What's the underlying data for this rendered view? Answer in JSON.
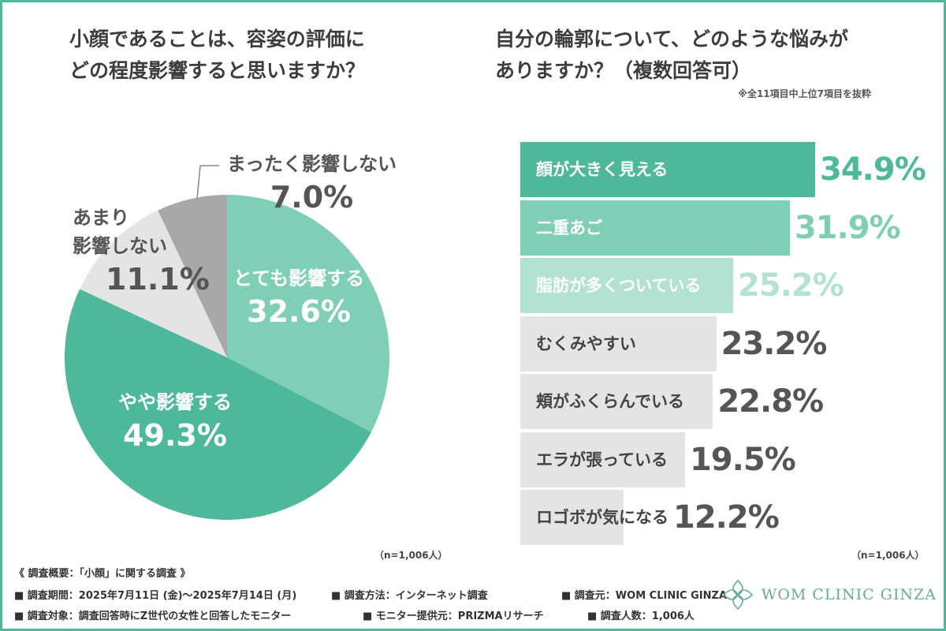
{
  "left_panel": {
    "title_line1": "小顔であることは、容姿の評価に",
    "title_line2": "どの程度影響すると思いますか？",
    "sample_size": "（n=1,006人）"
  },
  "right_panel": {
    "title_line1": "自分の輪郭について、どのような悩みが",
    "title_line2": "ありますか？（複数回答可）",
    "note": "※全11項目中上位7項目を抜粋",
    "sample_size": "（n=1,006人）"
  },
  "chart_data": [
    {
      "type": "pie",
      "title": "小顔であることは、容姿の評価にどの程度影響すると思いますか？",
      "start": "12 o'clock, clockwise",
      "slices": [
        {
          "label": "とても影響する",
          "value": 32.6,
          "value_label": "32.6%",
          "color": "#7fcfb6",
          "text_color": "#ffffff"
        },
        {
          "label": "やや影響する",
          "value": 49.3,
          "value_label": "49.3%",
          "color": "#4db89a",
          "text_color": "#ffffff"
        },
        {
          "label_line1": "あまり",
          "label_line2": "影響しない",
          "label": "あまり影響しない",
          "value": 11.1,
          "value_label": "11.1%",
          "color": "#e4e4e4",
          "text_color": "#555555"
        },
        {
          "label": "まったく影響しない",
          "value": 7.0,
          "value_label": "7.0%",
          "color": "#a8a8a8",
          "text_color": "#555555"
        }
      ]
    },
    {
      "type": "bar",
      "orientation": "horizontal",
      "title": "自分の輪郭について、どのような悩みがありますか？（複数回答可）",
      "categories": [
        "顔が大きく見える",
        "二重あご",
        "脂肪が多くついている",
        "むくみやすい",
        "頬がふくらんでいる",
        "エラが張っている",
        "ロゴボが気になる"
      ],
      "values": [
        34.9,
        31.9,
        25.2,
        23.2,
        22.8,
        19.5,
        12.2
      ],
      "value_labels": [
        "34.9%",
        "31.9%",
        "25.2%",
        "23.2%",
        "22.8%",
        "19.5%",
        "12.2%"
      ],
      "bar_colors": [
        "#4db89a",
        "#7fcfb6",
        "#b3e2d3",
        "#e4e4e4",
        "#e4e4e4",
        "#e4e4e4",
        "#e4e4e4"
      ],
      "label_colors": [
        "#ffffff",
        "#ffffff",
        "#ffffff",
        "#444444",
        "#444444",
        "#444444",
        "#444444"
      ],
      "value_colors": [
        "#4db89a",
        "#7fcfb6",
        "#b3e2d3",
        "#555555",
        "#555555",
        "#555555",
        "#555555"
      ],
      "xlim": [
        0,
        40
      ]
    }
  ],
  "footer": {
    "heading": "《 調査概要：「小顔」に関する調査 》",
    "period": "■ 調査期間：2025年7月11日 (金)〜2025年7月14日 (月)",
    "method": "■ 調査方法：インターネット調査",
    "source": "■ 調査元：WOM CLINIC GINZA",
    "target": "■ 調査対象：調査回答時にZ世代の女性と回答したモニター",
    "provider": "■ モニター提供元：PRIZMAリサーチ",
    "count": "■ 調査人数：1,006人"
  },
  "logo": {
    "text": "WOM CLINIC GINZA",
    "icon": "lotus-logo-icon",
    "color": "#6aa99a"
  }
}
